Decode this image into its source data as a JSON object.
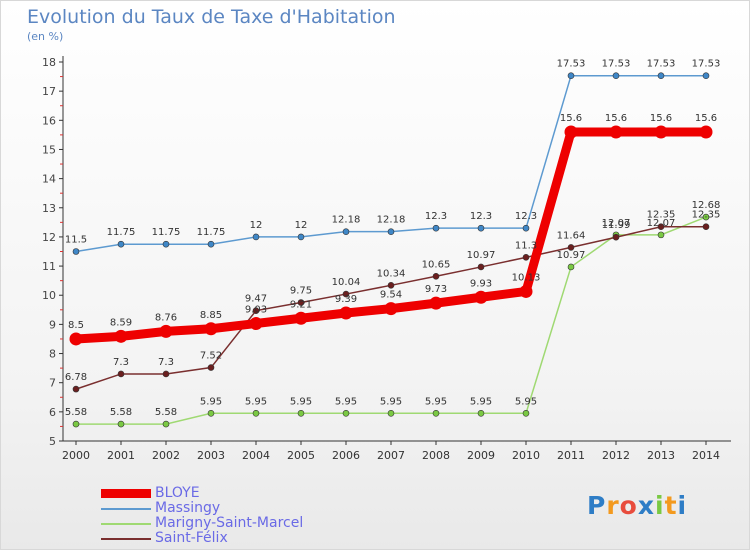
{
  "header": {
    "title": "Evolution du Taux de Taxe d'Habitation",
    "unit": "(en %)"
  },
  "chart_data": {
    "type": "line",
    "title": "Evolution du Taux de Taxe d'Habitation",
    "ylabel": "(en %)",
    "xlabel": "",
    "x": [
      2000,
      2001,
      2002,
      2003,
      2004,
      2005,
      2006,
      2007,
      2008,
      2009,
      2010,
      2011,
      2012,
      2013,
      2014
    ],
    "ylim": [
      5,
      18
    ],
    "yticks": [
      5,
      6,
      7,
      8,
      9,
      10,
      11,
      12,
      13,
      14,
      15,
      16,
      17,
      18
    ],
    "grid": false,
    "legend_position": "bottom-left",
    "series": [
      {
        "name": "BLOYE",
        "color": "#ee0000",
        "bold": true,
        "values": [
          8.5,
          8.59,
          8.76,
          8.85,
          9.03,
          9.21,
          9.39,
          9.54,
          9.73,
          9.93,
          10.13,
          15.6,
          15.6,
          15.6,
          15.6
        ],
        "labels": [
          "8.5",
          "8.59",
          "8.76",
          "8.85",
          "9.03",
          "9.21",
          "9.39",
          "9.54",
          "9.73",
          "9.93",
          "10.13",
          "15.6",
          "15.6",
          "15.6",
          "15.6"
        ]
      },
      {
        "name": "Massingy",
        "color": "#5d9ad0",
        "marker": "#3f87c7",
        "values": [
          11.5,
          11.75,
          11.75,
          11.75,
          12,
          12,
          12.18,
          12.18,
          12.3,
          12.3,
          12.3,
          17.53,
          17.53,
          17.53,
          17.53
        ],
        "labels": [
          "11.5",
          "11.75",
          "11.75",
          "11.75",
          "12",
          "12",
          "12.18",
          "12.18",
          "12.3",
          "12.3",
          "12.3",
          "17.53",
          "17.53",
          "17.53",
          "17.53"
        ]
      },
      {
        "name": "Marigny-Saint-Marcel",
        "color": "#9fd972",
        "marker": "#7ac943",
        "values": [
          5.58,
          5.58,
          5.58,
          5.95,
          5.95,
          5.95,
          5.95,
          5.95,
          5.95,
          5.95,
          5.95,
          10.97,
          12.07,
          12.07,
          12.68
        ],
        "labels": [
          "5.58",
          "5.58",
          "5.58",
          "5.95",
          "5.95",
          "5.95",
          "5.95",
          "5.95",
          "5.95",
          "5.95",
          "5.95",
          "10.97",
          "12.07",
          "12.07",
          "12.68"
        ]
      },
      {
        "name": "Saint-Félix",
        "color": "#7a2f2f",
        "marker": "#6b1f1f",
        "values": [
          6.78,
          7.3,
          7.3,
          7.52,
          9.47,
          9.75,
          10.04,
          10.34,
          10.65,
          10.97,
          11.3,
          11.64,
          11.99,
          12.35,
          12.35
        ],
        "labels": [
          "6.78",
          "7.3",
          "7.3",
          "7.52",
          "9.47",
          "9.75",
          "10.04",
          "10.34",
          "10.65",
          "10.97",
          "11.3",
          "11.64",
          "11.99",
          "12.35",
          "12.35"
        ]
      }
    ]
  },
  "legend": {
    "items": [
      {
        "label": "BLOYE",
        "color": "#ee0000"
      },
      {
        "label": "Massingy",
        "color": "#5d9ad0"
      },
      {
        "label": "Marigny-Saint-Marcel",
        "color": "#9fd972"
      },
      {
        "label": "Saint-Félix",
        "color": "#7a2f2f"
      }
    ]
  },
  "logo": {
    "letters": [
      "P",
      "r",
      "o",
      "x",
      "i",
      "t",
      "i"
    ],
    "colors": [
      "#2e7dc6",
      "#f39a1f",
      "#e84c3d",
      "#2e7dc6",
      "#7ac943",
      "#f39a1f",
      "#2e7dc6"
    ]
  }
}
